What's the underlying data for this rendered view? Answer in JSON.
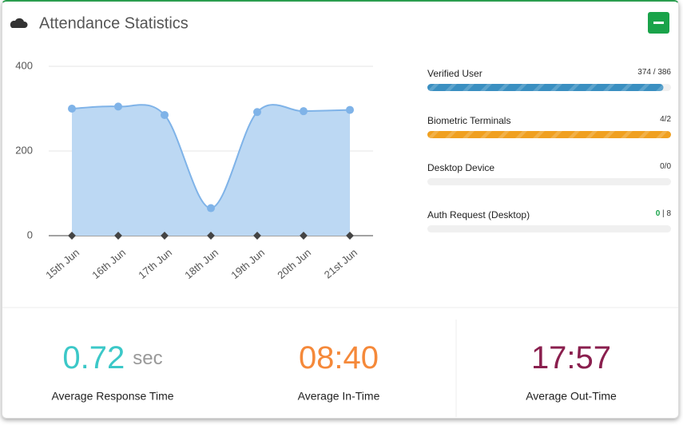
{
  "header": {
    "title": "Attendance Statistics"
  },
  "chart_data": {
    "type": "area",
    "categories": [
      "15th Jun",
      "16th Jun",
      "17th Jun",
      "18th Jun",
      "19th Jun",
      "20th Jun",
      "21st Jun"
    ],
    "values": [
      300,
      305,
      285,
      65,
      292,
      294,
      297
    ],
    "ylim": [
      0,
      400
    ],
    "yticks": [
      0,
      200,
      400
    ],
    "grid": true,
    "color": "#7fb3e8",
    "fill": "#bcd8f3"
  },
  "progress": [
    {
      "label": "Verified User",
      "current": 374,
      "separator": " / ",
      "total": 386,
      "color": "#3a8fc1"
    },
    {
      "label": "Biometric Terminals",
      "current": 4,
      "separator": "/",
      "total": 2,
      "color": "#f0a020"
    },
    {
      "label": "Desktop Device",
      "current": 0,
      "separator": "/",
      "total": 0,
      "color": "#9ab"
    },
    {
      "label": "Auth Request (Desktop)",
      "current": 0,
      "separator": " | ",
      "total": 8,
      "color": "#9ab",
      "current_color": "#1aa34a"
    }
  ],
  "stats": [
    {
      "value": 0.72,
      "unit": "sec",
      "label": "Average Response Time",
      "color": "#3cc8c8"
    },
    {
      "value": "08:40",
      "label": "Average In-Time",
      "color": "#f5893a"
    },
    {
      "value": "17:57",
      "label": "Average Out-Time",
      "color": "#8a1f4e"
    }
  ]
}
